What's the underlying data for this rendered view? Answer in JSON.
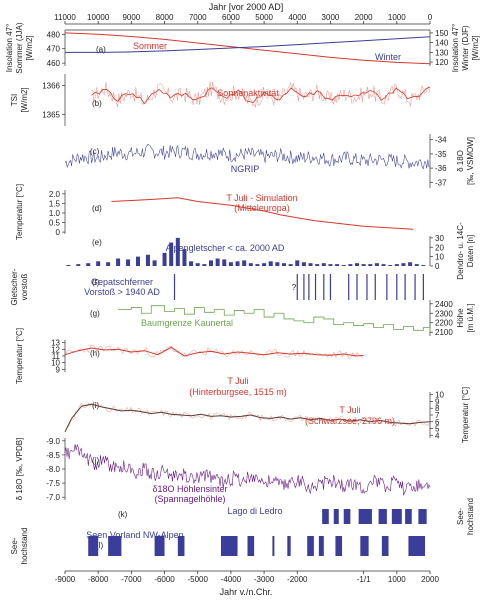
{
  "top_axis": {
    "label": "Jahr [vor 2000 AD]",
    "min": 11000,
    "max": 0,
    "ticks": [
      "11000",
      "10000",
      "9000",
      "8000",
      "7000",
      "6000",
      "5000",
      "4000",
      "3000",
      "2000",
      "1000",
      "0"
    ]
  },
  "bottom_axis": {
    "label": "Jahr v./n.Chr.",
    "min": -9000,
    "max": 2000,
    "ticks": [
      "-9000",
      "-8000",
      "-7000",
      "-6000",
      "-5000",
      "-4000",
      "-3000",
      "-2000",
      "-1/1",
      "1000",
      "2000"
    ]
  },
  "colors": {
    "red": "#d8372b",
    "blue": "#3a3d99",
    "green": "#6aa84f",
    "purple": "#6a1b8a",
    "dark": "#555555"
  },
  "chart_data": [
    {
      "id": "a",
      "type": "line",
      "panel_label": "(a)",
      "left_label": [
        "Insolation 47°",
        "Sommer (JJA)",
        "[W/m2]"
      ],
      "left_ticks": [
        "480",
        "470",
        "460"
      ],
      "left_range": [
        458,
        483
      ],
      "right_label": [
        "Insolation 47°",
        "Winter (DJF)",
        "[W/m2]"
      ],
      "right_ticks": [
        "150",
        "140",
        "130",
        "120"
      ],
      "right_range": [
        116,
        153
      ],
      "series": [
        {
          "name": "Sommer",
          "axis": "left",
          "x": [
            -9000,
            -8000,
            -7000,
            -6000,
            -5000,
            -4000,
            -3000,
            -2000,
            -1000,
            0,
            1000,
            2000
          ],
          "values": [
            481,
            480,
            478.5,
            476.5,
            474,
            471.5,
            469,
            466.5,
            464,
            462,
            460.5,
            459.5
          ]
        },
        {
          "name": "Winter",
          "axis": "right",
          "x": [
            -9000,
            -8000,
            -7000,
            -6000,
            -5000,
            -4000,
            -3000,
            -2000,
            -1000,
            0,
            1000,
            2000
          ],
          "values": [
            130,
            130,
            130.5,
            131.5,
            133,
            134.5,
            136,
            138,
            140,
            142,
            144,
            146
          ]
        }
      ]
    },
    {
      "id": "b",
      "type": "line",
      "panel_label": "(b)",
      "left_label": [
        "TSI",
        "[W/m2]"
      ],
      "left_ticks": [
        "1366",
        "1365"
      ],
      "left_range": [
        1364.6,
        1366.4
      ],
      "annotation": "Sonnenaktivität",
      "series": [
        {
          "name": "",
          "x": [
            -8200,
            -7800,
            -7400,
            -7000,
            -6600,
            -6200,
            -5800,
            -5400,
            -5000,
            -4600,
            -4200,
            -3800,
            -3400,
            -3000,
            -2600,
            -2200,
            -1800,
            -1400,
            -1000,
            -600,
            -200,
            200,
            600,
            1000,
            1400,
            1800,
            2000
          ],
          "values": [
            1365.6,
            1365.9,
            1365.5,
            1365.8,
            1365.4,
            1365.9,
            1365.6,
            1365.7,
            1365.5,
            1365.9,
            1365.6,
            1365.8,
            1365.4,
            1365.7,
            1365.5,
            1365.9,
            1365.6,
            1365.8,
            1365.5,
            1365.7,
            1365.6,
            1365.8,
            1365.5,
            1365.9,
            1365.5,
            1365.8,
            1366.0
          ]
        }
      ]
    },
    {
      "id": "c",
      "type": "line",
      "panel_label": "(c)",
      "right_label": [
        "δ 18O",
        "[‰, VSMOW]"
      ],
      "right_ticks": [
        "-34",
        "-35",
        "-36",
        "-37"
      ],
      "right_range": [
        -37.4,
        -33.6
      ],
      "annotation": "NGRIP",
      "series": [
        {
          "name": "",
          "x": [
            -9000,
            -8500,
            -8000,
            -7500,
            -7000,
            -6500,
            -6000,
            -5500,
            -5000,
            -4500,
            -4000,
            -3500,
            -3000,
            -2500,
            -2000,
            -1500,
            -1000,
            -500,
            0,
            500,
            1000,
            1500,
            2000
          ],
          "values": [
            -35.6,
            -35.2,
            -35.3,
            -34.9,
            -35.0,
            -34.8,
            -34.9,
            -34.8,
            -35.0,
            -34.9,
            -35.1,
            -35.0,
            -35.2,
            -35.1,
            -35.3,
            -35.2,
            -35.4,
            -35.3,
            -35.5,
            -35.4,
            -35.5,
            -35.6,
            -35.5
          ]
        }
      ]
    },
    {
      "id": "d",
      "type": "line",
      "panel_label": "(d)",
      "left_label": [
        "Temperatur [°C]"
      ],
      "left_ticks": [
        "2.0",
        "1.5",
        "1.0",
        "0.5",
        "0"
      ],
      "left_range": [
        -0.1,
        2.2
      ],
      "annotation": [
        "T Juli - Simulation",
        "(Mitteleuropa)"
      ],
      "series": [
        {
          "name": "",
          "x": [
            -7600,
            -7000,
            -6500,
            -6000,
            -5600,
            -5000,
            -4500,
            -4000,
            -3500,
            -3000,
            -2500,
            -2000,
            -1500,
            -1000,
            -500,
            0,
            500,
            1000,
            1500
          ],
          "values": [
            1.6,
            1.65,
            1.7,
            1.75,
            1.8,
            1.6,
            1.5,
            1.4,
            1.25,
            1.1,
            0.9,
            0.75,
            0.6,
            0.5,
            0.4,
            0.3,
            0.25,
            0.2,
            0.15
          ]
        }
      ]
    },
    {
      "id": "e",
      "type": "bar",
      "panel_label": "(e)",
      "right_label": [
        "Dendro- u. 14C-",
        "Daten [n]"
      ],
      "right_ticks": [
        "30",
        "20",
        "10",
        "0"
      ],
      "right_range": [
        0,
        32
      ],
      "annotation": "Alpengletscher < ca. 2000 AD",
      "x": [
        -8900,
        -8600,
        -8300,
        -8000,
        -7700,
        -7400,
        -7100,
        -6800,
        -6500,
        -6300,
        -6000,
        -5800,
        -5600,
        -5400,
        -5200,
        -5000,
        -4800,
        -4600,
        -4400,
        -4200,
        -4000,
        -3800,
        -3600,
        -3400,
        -3200,
        -3000,
        -2800,
        -2600,
        -2400,
        -2200,
        -2000,
        -1800,
        -1600,
        -1400,
        -1200,
        -1000,
        -800,
        -600,
        -400,
        -200,
        0,
        200,
        400,
        600,
        800,
        1000,
        1200,
        1400,
        1600,
        1800
      ],
      "values": [
        1,
        2,
        3,
        5,
        4,
        8,
        7,
        10,
        12,
        6,
        14,
        25,
        30,
        18,
        5,
        3,
        2,
        6,
        8,
        7,
        4,
        5,
        6,
        3,
        2,
        3,
        5,
        4,
        3,
        2,
        6,
        4,
        3,
        2,
        3,
        2,
        2,
        1,
        2,
        3,
        2,
        2,
        3,
        2,
        1,
        2,
        3,
        4,
        2,
        1
      ]
    },
    {
      "id": "f",
      "type": "event",
      "panel_label": "(f)",
      "left_label": [
        "Gletscher-",
        "vorstoß"
      ],
      "annotation": [
        "Gepatschferner",
        "Vorstoß > 1940 AD"
      ],
      "question_mark": "?",
      "x": [
        -5700,
        -2000,
        -1800,
        -1650,
        -1450,
        -1200,
        -1000,
        -450,
        -200,
        100,
        350,
        700,
        1000,
        1250,
        1550,
        1800
      ]
    },
    {
      "id": "g",
      "type": "line",
      "panel_label": "(g)",
      "right_label": [
        "Höhe",
        "[m ü.M.]"
      ],
      "right_ticks": [
        "2400",
        "2300",
        "2200",
        "2100"
      ],
      "right_range": [
        2060,
        2440
      ],
      "annotation": "Baumgrenze Kaunertal",
      "series": [
        {
          "name": "",
          "x": [
            -7400,
            -7000,
            -6700,
            -6400,
            -6000,
            -5700,
            -5400,
            -5100,
            -4800,
            -4500,
            -4200,
            -3900,
            -3600,
            -3300,
            -3000,
            -2700,
            -2400,
            -2100,
            -1800,
            -1500,
            -1200,
            -900,
            -600,
            -300,
            0,
            300,
            600,
            900,
            1200,
            1500,
            1800,
            2000
          ],
          "values": [
            2340,
            2360,
            2300,
            2380,
            2320,
            2350,
            2290,
            2360,
            2310,
            2340,
            2280,
            2330,
            2300,
            2340,
            2260,
            2300,
            2240,
            2220,
            2200,
            2260,
            2240,
            2180,
            2200,
            2170,
            2190,
            2150,
            2180,
            2130,
            2160,
            2120,
            2150,
            2110
          ]
        }
      ]
    },
    {
      "id": "h",
      "type": "line",
      "panel_label": "(h)",
      "left_label": [
        "Temperatur [°C]"
      ],
      "left_ticks": [
        "13",
        "12",
        "11",
        "10",
        "9"
      ],
      "left_range": [
        8.6,
        13.4
      ],
      "annotation": [
        "T Juli",
        "(Hinterburgsee, 1515 m)"
      ],
      "series": [
        {
          "name": "",
          "x": [
            -9000,
            -8600,
            -8200,
            -7800,
            -7400,
            -7000,
            -6600,
            -6200,
            -5800,
            -5400,
            -5000,
            -4600,
            -4200,
            -3800,
            -3400,
            -3000,
            -2600,
            -2200,
            -1800,
            -1400,
            -1000,
            -600,
            -200,
            0
          ],
          "values": [
            11.2,
            11.8,
            12.2,
            11.9,
            12.0,
            11.6,
            11.8,
            11.2,
            12.3,
            11.0,
            11.5,
            11.7,
            11.3,
            11.6,
            11.4,
            11.2,
            11.5,
            11.3,
            11.4,
            11.2,
            11.1,
            11.3,
            11.0,
            11.1
          ]
        }
      ]
    },
    {
      "id": "i",
      "type": "line",
      "panel_label": "(i)",
      "right_label": [
        "Temperatur [°C]"
      ],
      "right_ticks": [
        "10",
        "9",
        "8",
        "7",
        "6",
        "5",
        "4"
      ],
      "right_range": [
        3.6,
        10.4
      ],
      "annotation": [
        "T Juli",
        "(Schwarzsee, 2796 m)"
      ],
      "series": [
        {
          "name": "",
          "x": [
            -9000,
            -8800,
            -8500,
            -8200,
            -7900,
            -7600,
            -7300,
            -7000,
            -6700,
            -6400,
            -6100,
            -5800,
            -5500,
            -5200,
            -4900,
            -4600,
            -4300,
            -4000,
            -3700,
            -3400,
            -3100,
            -2800,
            -2500,
            -2200,
            -1900,
            -1600,
            -1300,
            -1000,
            -700,
            -400,
            -100,
            200,
            500,
            800,
            1100,
            1400,
            1700,
            2000
          ],
          "values": [
            4.5,
            6.5,
            8.3,
            8.6,
            8.2,
            7.9,
            7.6,
            7.7,
            7.5,
            7.2,
            7.4,
            7.1,
            7.0,
            6.9,
            7.1,
            6.8,
            6.9,
            6.7,
            6.8,
            7.0,
            6.6,
            6.5,
            6.7,
            6.4,
            6.6,
            6.3,
            6.5,
            6.2,
            6.4,
            6.1,
            6.3,
            6.0,
            6.2,
            5.9,
            5.8,
            5.7,
            5.9,
            6.0
          ]
        }
      ]
    },
    {
      "id": "j",
      "type": "line",
      "panel_label": "(j)",
      "left_label": [
        "δ 18O [‰, VPDB]"
      ],
      "left_ticks": [
        "-9.0",
        "-8.5",
        "-8.0",
        "-7.5",
        "-7.0"
      ],
      "left_range": [
        -9.1,
        -6.9
      ],
      "inverted": true,
      "annotation": [
        "δ18O Höhlensinter",
        "(Spannagelhöhle)"
      ],
      "series": [
        {
          "name": "",
          "x": [
            -9000,
            -8700,
            -8400,
            -8100,
            -7800,
            -7500,
            -7200,
            -6900,
            -6600,
            -6300,
            -6000,
            -5700,
            -5400,
            -5100,
            -4800,
            -4500,
            -4200,
            -3900,
            -3600,
            -3300,
            -3000,
            -2700,
            -2400,
            -2100,
            -1800,
            -1500,
            -1200,
            -900,
            -600,
            -300,
            0,
            300,
            600,
            900,
            1200,
            1500,
            1800,
            2000
          ],
          "values": [
            -8.5,
            -8.7,
            -8.4,
            -8.2,
            -8.3,
            -8.0,
            -8.1,
            -7.9,
            -8.0,
            -7.8,
            -7.9,
            -7.7,
            -7.8,
            -7.6,
            -7.8,
            -7.7,
            -7.5,
            -7.7,
            -7.6,
            -7.8,
            -7.5,
            -7.6,
            -7.4,
            -7.6,
            -7.5,
            -7.3,
            -7.5,
            -7.6,
            -7.4,
            -7.5,
            -7.3,
            -7.6,
            -7.4,
            -7.5,
            -7.3,
            -7.4,
            -7.5,
            -7.3
          ]
        }
      ]
    },
    {
      "id": "k",
      "type": "event_bar",
      "panel_label": "(k)",
      "right_label": [
        "See-",
        "hochstand"
      ],
      "annotation": "Lago di Ledro",
      "intervals": [
        [
          -1250,
          -1050
        ],
        [
          -900,
          -750
        ],
        [
          -600,
          -400
        ],
        [
          -150,
          250
        ],
        [
          450,
          700
        ],
        [
          850,
          1150
        ],
        [
          1250,
          1450
        ],
        [
          1650,
          1900
        ]
      ]
    },
    {
      "id": "l",
      "type": "event_bar",
      "panel_label": "(l)",
      "left_label": [
        "See-",
        "hochstand"
      ],
      "annotation": "Seen Vorland NW-Alpen",
      "intervals": [
        [
          -8300,
          -8000
        ],
        [
          -7700,
          -7300
        ],
        [
          -6300,
          -6000
        ],
        [
          -5600,
          -5400
        ],
        [
          -4300,
          -3800
        ],
        [
          -3500,
          -3300
        ],
        [
          -2750,
          -2700
        ],
        [
          -2300,
          -2200
        ],
        [
          -1700,
          -1500
        ],
        [
          -1350,
          -1200
        ],
        [
          -850,
          -650
        ],
        [
          -100,
          150
        ],
        [
          550,
          750
        ],
        [
          1350,
          1850
        ]
      ]
    }
  ]
}
